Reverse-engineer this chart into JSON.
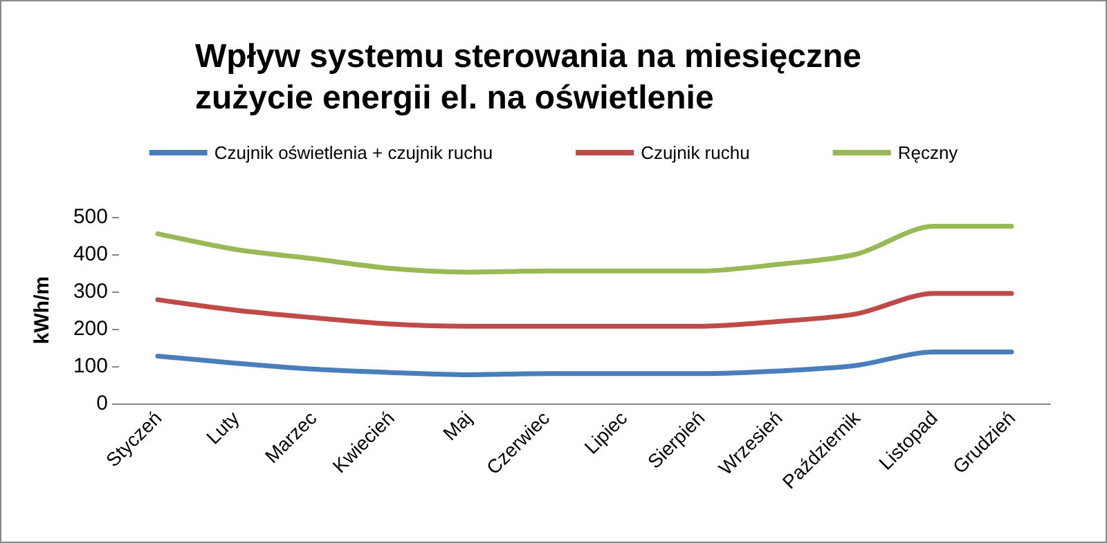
{
  "chart_data": {
    "type": "line",
    "title": "Wpływ systemu sterowania na miesięczne zużycie energii el. na oświetlenie",
    "ylabel": "kWh/m",
    "categories": [
      "Styczeń",
      "Luty",
      "Marzec",
      "Kwiecień",
      "Maj",
      "Czerwiec",
      "Lipiec",
      "Sierpień",
      "Wrzesień",
      "Październik",
      "Listopad",
      "Grudzień"
    ],
    "series": [
      {
        "name": "Czujnik oświetlenia + czujnik ruchu",
        "color": "#4a7ebb",
        "values": [
          127,
          108,
          92,
          83,
          77,
          80,
          80,
          80,
          87,
          102,
          138,
          138
        ]
      },
      {
        "name": "Czujnik ruchu",
        "color": "#be4b48",
        "values": [
          278,
          250,
          230,
          213,
          207,
          207,
          207,
          207,
          220,
          240,
          295,
          295
        ]
      },
      {
        "name": "Ręczny",
        "color": "#98b954",
        "values": [
          455,
          413,
          388,
          362,
          352,
          355,
          355,
          355,
          373,
          400,
          475,
          475
        ]
      }
    ],
    "ylim": [
      0,
      500
    ],
    "yticks": [
      0,
      100,
      200,
      300,
      400,
      500
    ],
    "grid": false,
    "legend": "top",
    "marker": "none"
  }
}
